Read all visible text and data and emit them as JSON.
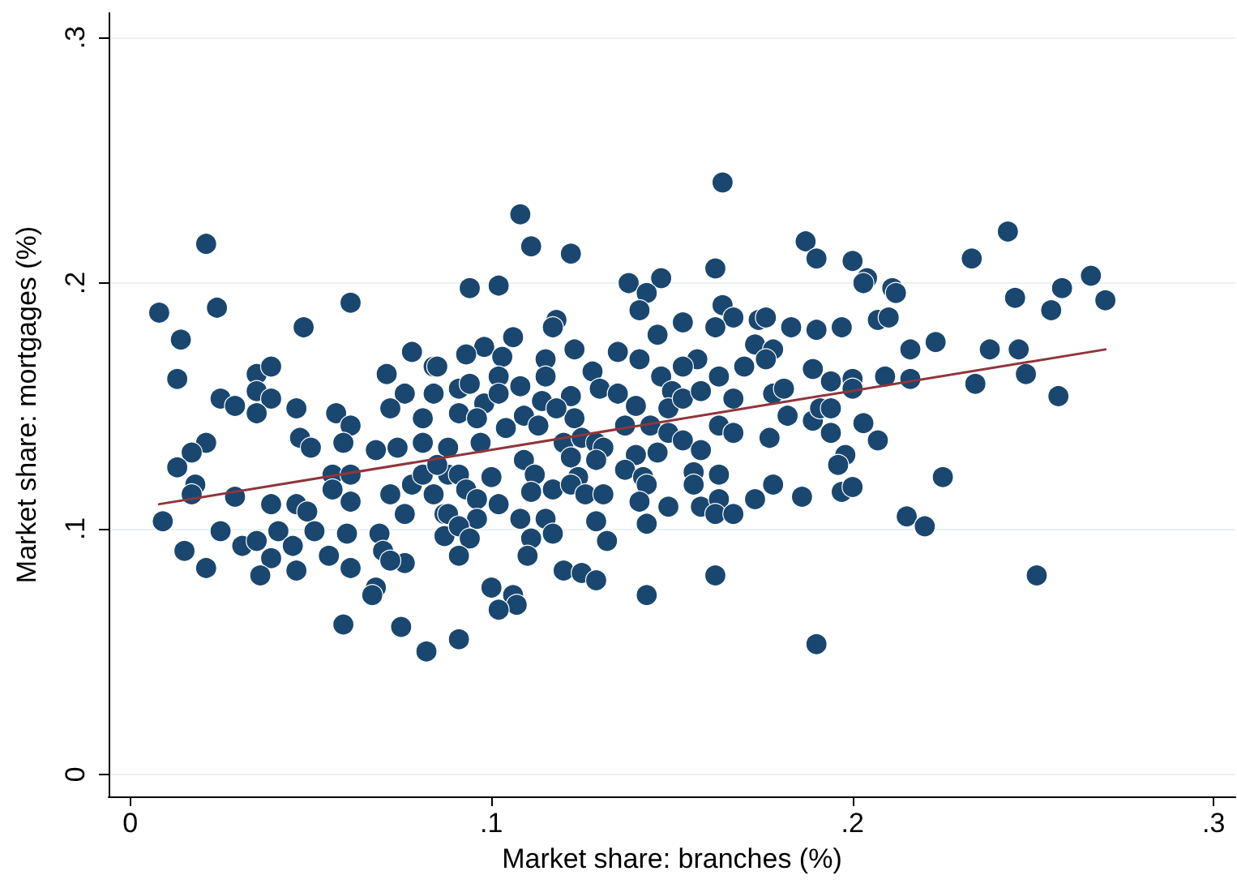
{
  "chart_data": {
    "type": "scatter",
    "xlabel": "Market share: branches (%)",
    "ylabel": "Market share: mortgages (%)",
    "xlim": [
      -0.006,
      0.306
    ],
    "ylim": [
      -0.009,
      0.31
    ],
    "xticks": [
      0,
      {
        "value": 0.1,
        "label": ".1"
      },
      {
        "value": 0.2,
        "label": ".2"
      },
      {
        "value": 0.3,
        "label": ".3"
      }
    ],
    "yticks": [
      0,
      {
        "value": 0.1,
        "label": ".1"
      },
      {
        "value": 0.2,
        "label": ".2"
      },
      {
        "value": 0.3,
        "label": ".3"
      }
    ],
    "grid": "y",
    "marker": "circle",
    "series": [
      {
        "color": "#1a476f",
        "x": [
          0.021,
          0.008,
          0.024,
          0.061,
          0.014,
          0.048,
          0.013,
          0.078,
          0.084,
          0.035,
          0.039,
          0.035,
          0.039,
          0.025,
          0.029,
          0.035,
          0.046,
          0.057,
          0.061,
          0.071,
          0.076,
          0.084,
          0.072,
          0.068,
          0.081,
          0.047,
          0.05,
          0.059,
          0.021,
          0.017,
          0.013,
          0.018,
          0.017,
          0.029,
          0.009,
          0.025,
          0.015,
          0.021,
          0.031,
          0.035,
          0.041,
          0.039,
          0.036,
          0.045,
          0.046,
          0.039,
          0.046,
          0.049,
          0.051,
          0.056,
          0.056,
          0.061,
          0.061,
          0.06,
          0.055,
          0.061,
          0.069,
          0.07,
          0.068,
          0.067,
          0.059,
          0.075,
          0.082,
          0.076,
          0.072,
          0.087,
          0.074,
          0.081,
          0.078,
          0.081,
          0.072,
          0.084,
          0.076,
          0.088,
          0.087,
          0.164,
          0.108,
          0.111,
          0.122,
          0.162,
          0.147,
          0.138,
          0.094,
          0.102,
          0.143,
          0.141,
          0.164,
          0.167,
          0.162,
          0.153,
          0.118,
          0.117,
          0.146,
          0.106,
          0.098,
          0.123,
          0.093,
          0.103,
          0.115,
          0.135,
          0.141,
          0.157,
          0.153,
          0.17,
          0.173,
          0.128,
          0.115,
          0.102,
          0.091,
          0.094,
          0.108,
          0.085,
          0.13,
          0.135,
          0.147,
          0.15,
          0.14,
          0.149,
          0.153,
          0.158,
          0.163,
          0.167,
          0.122,
          0.114,
          0.098,
          0.091,
          0.096,
          0.102,
          0.123,
          0.118,
          0.109,
          0.137,
          0.144,
          0.149,
          0.153,
          0.163,
          0.167,
          0.104,
          0.097,
          0.088,
          0.113,
          0.12,
          0.125,
          0.129,
          0.131,
          0.14,
          0.146,
          0.158,
          0.109,
          0.122,
          0.129,
          0.137,
          0.085,
          0.091,
          0.1,
          0.112,
          0.124,
          0.156,
          0.163,
          0.142,
          0.093,
          0.111,
          0.117,
          0.122,
          0.126,
          0.131,
          0.156,
          0.143,
          0.141,
          0.149,
          0.158,
          0.163,
          0.173,
          0.088,
          0.096,
          0.102,
          0.108,
          0.096,
          0.091,
          0.115,
          0.117,
          0.129,
          0.143,
          0.162,
          0.167,
          0.094,
          0.111,
          0.091,
          0.11,
          0.132,
          0.12,
          0.125,
          0.129,
          0.1,
          0.106,
          0.107,
          0.102,
          0.143,
          0.162,
          0.091,
          0.187,
          0.19,
          0.243,
          0.233,
          0.2,
          0.204,
          0.203,
          0.211,
          0.212,
          0.266,
          0.258,
          0.27,
          0.245,
          0.255,
          0.174,
          0.176,
          0.183,
          0.19,
          0.197,
          0.207,
          0.21,
          0.178,
          0.176,
          0.216,
          0.223,
          0.238,
          0.246,
          0.189,
          0.194,
          0.2,
          0.2,
          0.209,
          0.216,
          0.234,
          0.248,
          0.257,
          0.178,
          0.181,
          0.182,
          0.189,
          0.191,
          0.194,
          0.194,
          0.203,
          0.207,
          0.177,
          0.198,
          0.196,
          0.178,
          0.186,
          0.197,
          0.2,
          0.225,
          0.215,
          0.22,
          0.251,
          0.19
        ],
        "values": [
          0.216,
          0.188,
          0.19,
          0.192,
          0.177,
          0.182,
          0.161,
          0.172,
          0.166,
          0.163,
          0.166,
          0.156,
          0.153,
          0.153,
          0.15,
          0.147,
          0.149,
          0.147,
          0.142,
          0.163,
          0.155,
          0.155,
          0.149,
          0.132,
          0.145,
          0.137,
          0.133,
          0.135,
          0.135,
          0.131,
          0.125,
          0.118,
          0.114,
          0.113,
          0.103,
          0.099,
          0.091,
          0.084,
          0.093,
          0.095,
          0.099,
          0.088,
          0.081,
          0.093,
          0.083,
          0.11,
          0.11,
          0.107,
          0.099,
          0.122,
          0.116,
          0.122,
          0.111,
          0.098,
          0.089,
          0.084,
          0.098,
          0.091,
          0.076,
          0.073,
          0.061,
          0.06,
          0.05,
          0.086,
          0.087,
          0.097,
          0.133,
          0.135,
          0.118,
          0.122,
          0.114,
          0.114,
          0.106,
          0.122,
          0.106,
          0.241,
          0.228,
          0.215,
          0.212,
          0.206,
          0.202,
          0.2,
          0.198,
          0.199,
          0.196,
          0.189,
          0.191,
          0.186,
          0.182,
          0.184,
          0.185,
          0.182,
          0.179,
          0.178,
          0.174,
          0.173,
          0.171,
          0.17,
          0.169,
          0.172,
          0.169,
          0.169,
          0.166,
          0.166,
          0.175,
          0.164,
          0.162,
          0.162,
          0.157,
          0.159,
          0.158,
          0.166,
          0.157,
          0.155,
          0.162,
          0.156,
          0.15,
          0.149,
          0.153,
          0.156,
          0.162,
          0.153,
          0.154,
          0.152,
          0.151,
          0.147,
          0.145,
          0.155,
          0.145,
          0.149,
          0.146,
          0.142,
          0.142,
          0.139,
          0.136,
          0.142,
          0.139,
          0.141,
          0.135,
          0.133,
          0.142,
          0.135,
          0.137,
          0.135,
          0.133,
          0.13,
          0.131,
          0.132,
          0.128,
          0.129,
          0.128,
          0.124,
          0.126,
          0.122,
          0.121,
          0.122,
          0.121,
          0.123,
          0.122,
          0.121,
          0.116,
          0.115,
          0.116,
          0.118,
          0.114,
          0.114,
          0.118,
          0.118,
          0.111,
          0.109,
          0.109,
          0.112,
          0.112,
          0.106,
          0.112,
          0.11,
          0.104,
          0.104,
          0.101,
          0.104,
          0.098,
          0.103,
          0.102,
          0.106,
          0.106,
          0.096,
          0.096,
          0.089,
          0.089,
          0.095,
          0.083,
          0.082,
          0.079,
          0.076,
          0.073,
          0.069,
          0.067,
          0.073,
          0.081,
          0.055,
          0.217,
          0.21,
          0.221,
          0.21,
          0.209,
          0.202,
          0.2,
          0.198,
          0.196,
          0.203,
          0.198,
          0.193,
          0.194,
          0.189,
          0.185,
          0.186,
          0.182,
          0.181,
          0.182,
          0.185,
          0.186,
          0.173,
          0.169,
          0.173,
          0.176,
          0.173,
          0.173,
          0.165,
          0.16,
          0.161,
          0.157,
          0.162,
          0.161,
          0.159,
          0.163,
          0.154,
          0.155,
          0.157,
          0.146,
          0.144,
          0.149,
          0.149,
          0.139,
          0.143,
          0.136,
          0.137,
          0.13,
          0.126,
          0.118,
          0.113,
          0.115,
          0.117,
          0.121,
          0.105,
          0.101,
          0.081,
          0.053
        ]
      },
      {
        "type": "line",
        "color": "#90353b",
        "marker": "none",
        "x": [
          0.008,
          0.27
        ],
        "values": [
          0.11,
          0.173
        ]
      }
    ]
  }
}
